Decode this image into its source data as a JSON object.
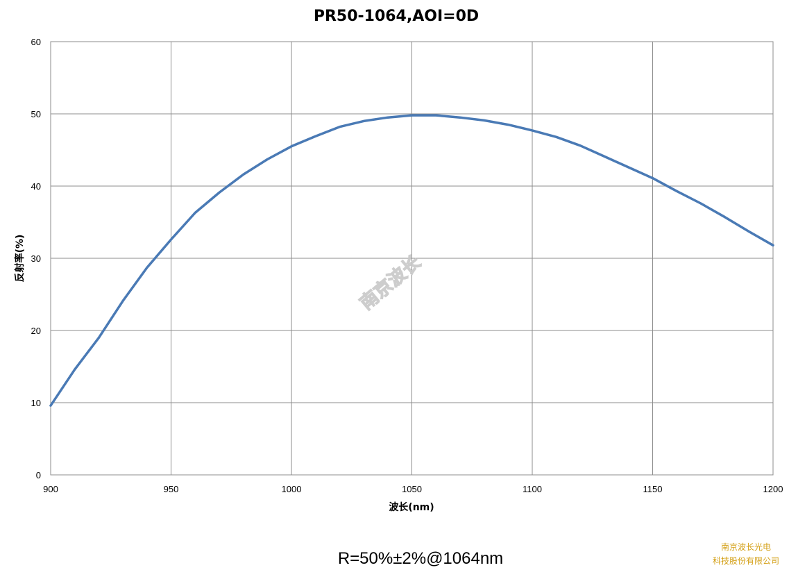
{
  "chart_data": {
    "type": "line",
    "title": "PR50-1064,AOI=0D",
    "xlabel": "波长(nm)",
    "ylabel": "反射率(%)",
    "xlim": [
      900,
      1200
    ],
    "ylim": [
      0,
      60
    ],
    "xticks": [
      900,
      950,
      1000,
      1050,
      1100,
      1150,
      1200
    ],
    "yticks": [
      0,
      10,
      20,
      30,
      40,
      50,
      60
    ],
    "grid": true,
    "legend": "none",
    "series": [
      {
        "color": "#4a7ab5",
        "x": [
          900,
          910,
          920,
          930,
          940,
          950,
          960,
          970,
          980,
          990,
          1000,
          1010,
          1020,
          1030,
          1040,
          1050,
          1060,
          1070,
          1080,
          1090,
          1100,
          1110,
          1120,
          1130,
          1140,
          1150,
          1160,
          1170,
          1180,
          1190,
          1200
        ],
        "y": [
          9.6,
          14.6,
          19.0,
          24.1,
          28.7,
          32.6,
          36.3,
          39.1,
          41.6,
          43.7,
          45.5,
          46.9,
          48.2,
          49.0,
          49.5,
          49.8,
          49.8,
          49.5,
          49.1,
          48.5,
          47.7,
          46.8,
          45.6,
          44.1,
          42.6,
          41.1,
          39.3,
          37.6,
          35.7,
          33.7,
          31.8
        ]
      }
    ]
  },
  "watermark": "南京波长",
  "spec_text": "R=50%±2%@1064nm",
  "company_line1": "南京波长光电",
  "company_line2": "科技股份有限公司"
}
